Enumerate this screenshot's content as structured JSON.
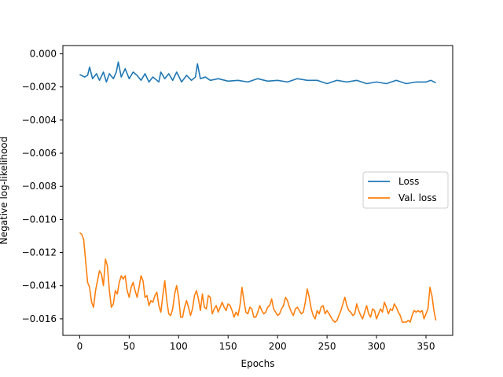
{
  "chart_data": {
    "type": "line",
    "xlabel": "Epochs",
    "ylabel": "Negative log-likelihood",
    "xlim": [
      -17,
      377
    ],
    "ylim": [
      -0.017,
      0.0005
    ],
    "xticks": [
      0,
      50,
      100,
      150,
      200,
      250,
      300,
      350
    ],
    "xtick_labels": [
      "0",
      "50",
      "100",
      "150",
      "200",
      "250",
      "300",
      "350"
    ],
    "yticks": [
      0.0,
      -0.002,
      -0.004,
      -0.006,
      -0.008,
      -0.01,
      -0.012,
      -0.014,
      -0.016
    ],
    "ytick_labels": [
      "0.000",
      "−0.002",
      "−0.004",
      "−0.006",
      "−0.008",
      "−0.010",
      "−0.012",
      "−0.014",
      "−0.016"
    ],
    "legend_position": "center-right",
    "grid": false,
    "series": [
      {
        "name": "Loss",
        "color": "#1f77b4",
        "x": [
          0,
          5,
          8,
          10,
          13,
          17,
          20,
          24,
          27,
          30,
          34,
          37,
          39,
          42,
          46,
          50,
          54,
          58,
          62,
          66,
          70,
          74,
          80,
          82,
          86,
          90,
          94,
          98,
          103,
          108,
          113,
          117,
          119,
          122,
          127,
          132,
          140,
          150,
          160,
          170,
          180,
          190,
          200,
          210,
          220,
          230,
          240,
          250,
          260,
          270,
          280,
          290,
          300,
          310,
          320,
          330,
          340,
          350,
          355,
          360
        ],
        "y": [
          -0.00125,
          -0.0014,
          -0.0013,
          -0.0008,
          -0.0015,
          -0.0012,
          -0.0016,
          -0.0011,
          -0.0017,
          -0.0012,
          -0.0015,
          -0.0011,
          -0.0005,
          -0.0014,
          -0.0009,
          -0.0015,
          -0.0011,
          -0.0013,
          -0.0016,
          -0.0012,
          -0.0017,
          -0.0014,
          -0.0017,
          -0.0011,
          -0.0015,
          -0.0012,
          -0.0016,
          -0.0011,
          -0.0017,
          -0.0013,
          -0.0016,
          -0.0014,
          -0.0006,
          -0.0015,
          -0.0014,
          -0.0016,
          -0.0015,
          -0.00165,
          -0.0016,
          -0.0017,
          -0.0015,
          -0.00165,
          -0.0016,
          -0.0017,
          -0.0015,
          -0.0016,
          -0.0016,
          -0.0018,
          -0.0016,
          -0.0017,
          -0.0016,
          -0.0018,
          -0.0017,
          -0.0018,
          -0.0016,
          -0.0018,
          -0.0017,
          -0.0017,
          -0.0016,
          -0.00175
        ]
      },
      {
        "name": "Val. loss",
        "color": "#ff7f0e",
        "x": [
          0,
          2,
          4,
          6,
          8,
          10,
          12,
          14,
          16,
          18,
          20,
          22,
          24,
          26,
          28,
          30,
          32,
          34,
          36,
          38,
          40,
          42,
          44,
          46,
          48,
          50,
          52,
          54,
          56,
          58,
          60,
          62,
          64,
          66,
          68,
          70,
          72,
          74,
          76,
          78,
          80,
          82,
          84,
          86,
          88,
          90,
          92,
          94,
          96,
          98,
          100,
          102,
          104,
          106,
          108,
          110,
          112,
          114,
          116,
          118,
          120,
          122,
          124,
          126,
          128,
          130,
          132,
          134,
          136,
          138,
          140,
          142,
          144,
          146,
          148,
          150,
          152,
          154,
          156,
          158,
          160,
          162,
          164,
          166,
          168,
          170,
          172,
          174,
          176,
          178,
          180,
          182,
          184,
          186,
          188,
          190,
          192,
          194,
          196,
          198,
          200,
          202,
          204,
          206,
          208,
          210,
          212,
          214,
          216,
          218,
          220,
          222,
          224,
          226,
          228,
          230,
          232,
          234,
          236,
          238,
          240,
          242,
          244,
          246,
          248,
          250,
          252,
          254,
          256,
          258,
          260,
          262,
          264,
          266,
          268,
          270,
          272,
          274,
          276,
          278,
          280,
          282,
          284,
          286,
          288,
          290,
          292,
          294,
          296,
          298,
          300,
          302,
          304,
          306,
          308,
          310,
          312,
          314,
          316,
          318,
          320,
          322,
          324,
          326,
          328,
          330,
          332,
          334,
          336,
          338,
          340,
          342,
          344,
          346,
          348,
          350,
          352,
          354,
          356,
          358,
          360
        ],
        "y": [
          -0.0108,
          -0.0109,
          -0.0112,
          -0.0125,
          -0.0138,
          -0.0141,
          -0.015,
          -0.0153,
          -0.0143,
          -0.0137,
          -0.0131,
          -0.0133,
          -0.014,
          -0.0124,
          -0.0128,
          -0.0143,
          -0.0153,
          -0.0151,
          -0.0143,
          -0.0145,
          -0.0138,
          -0.0134,
          -0.0136,
          -0.0134,
          -0.0143,
          -0.0147,
          -0.0141,
          -0.0138,
          -0.0143,
          -0.0147,
          -0.0141,
          -0.0134,
          -0.0137,
          -0.0147,
          -0.0146,
          -0.0152,
          -0.0149,
          -0.015,
          -0.0146,
          -0.0144,
          -0.0152,
          -0.0156,
          -0.0146,
          -0.0137,
          -0.0149,
          -0.0157,
          -0.0158,
          -0.0154,
          -0.0145,
          -0.014,
          -0.0147,
          -0.0159,
          -0.0159,
          -0.0153,
          -0.0149,
          -0.0153,
          -0.0158,
          -0.0154,
          -0.0146,
          -0.0143,
          -0.0148,
          -0.0155,
          -0.0145,
          -0.0153,
          -0.0154,
          -0.0146,
          -0.0147,
          -0.0157,
          -0.0154,
          -0.0152,
          -0.0156,
          -0.0153,
          -0.015,
          -0.0153,
          -0.0155,
          -0.0151,
          -0.0152,
          -0.0155,
          -0.0159,
          -0.0156,
          -0.0158,
          -0.0152,
          -0.0141,
          -0.0149,
          -0.0156,
          -0.0157,
          -0.0153,
          -0.0154,
          -0.0159,
          -0.0159,
          -0.0156,
          -0.0152,
          -0.0155,
          -0.0157,
          -0.0156,
          -0.0153,
          -0.0152,
          -0.0148,
          -0.0154,
          -0.0156,
          -0.0158,
          -0.0157,
          -0.0154,
          -0.0152,
          -0.0147,
          -0.0149,
          -0.0153,
          -0.0156,
          -0.0158,
          -0.0154,
          -0.0153,
          -0.0155,
          -0.0157,
          -0.0156,
          -0.015,
          -0.0142,
          -0.0147,
          -0.0154,
          -0.0158,
          -0.016,
          -0.0155,
          -0.0157,
          -0.0153,
          -0.0152,
          -0.0157,
          -0.0155,
          -0.0157,
          -0.0159,
          -0.0161,
          -0.0162,
          -0.0161,
          -0.0158,
          -0.0155,
          -0.0151,
          -0.0147,
          -0.0152,
          -0.0155,
          -0.0156,
          -0.0158,
          -0.0157,
          -0.0151,
          -0.0155,
          -0.0158,
          -0.016,
          -0.0156,
          -0.0152,
          -0.0157,
          -0.0159,
          -0.0154,
          -0.0155,
          -0.016,
          -0.0157,
          -0.0154,
          -0.0156,
          -0.015,
          -0.0153,
          -0.0157,
          -0.0154,
          -0.0155,
          -0.0151,
          -0.0153,
          -0.0156,
          -0.0158,
          -0.0162,
          -0.0162,
          -0.0162,
          -0.0161,
          -0.0162,
          -0.0158,
          -0.0155,
          -0.0156,
          -0.0155,
          -0.0156,
          -0.0155,
          -0.016,
          -0.0157,
          -0.0154,
          -0.0141,
          -0.0146,
          -0.0155,
          -0.0161
        ]
      }
    ]
  }
}
